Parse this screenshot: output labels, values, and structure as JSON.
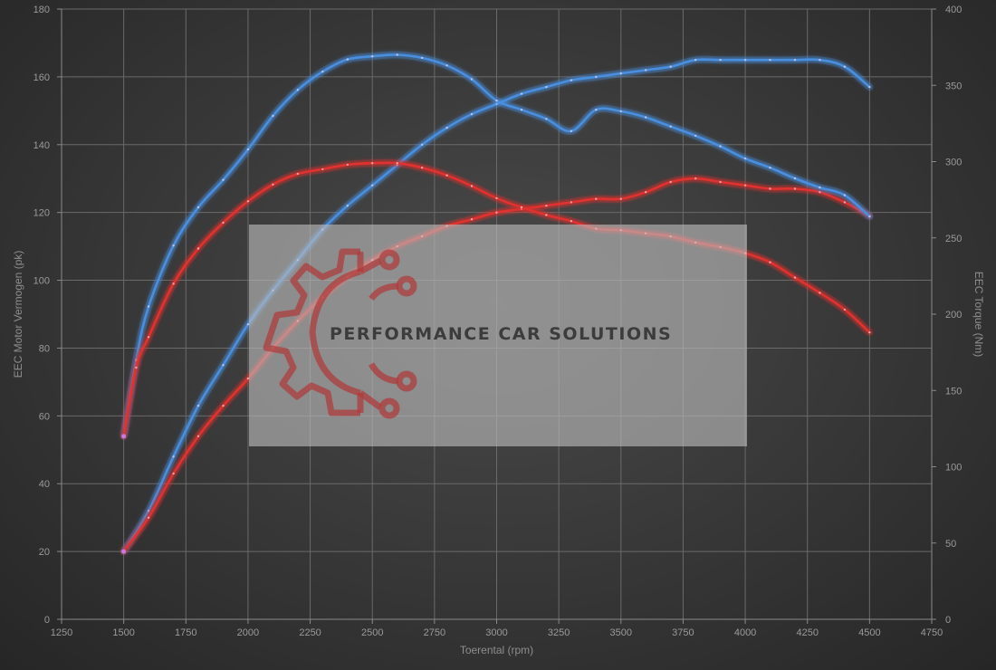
{
  "chart_data": {
    "type": "line",
    "xlabel": "Toerental (rpm)",
    "ylabel": "EEC Motor Vermogen (pk)",
    "y2label": "EEC Torque (Nm)",
    "xlim": [
      1250,
      4750
    ],
    "ylim": [
      0,
      180
    ],
    "y2lim": [
      0,
      400
    ],
    "xticks": [
      "1250",
      "1500",
      "1750",
      "2000",
      "2250",
      "2500",
      "2750",
      "3000",
      "3250",
      "3500",
      "3750",
      "4000",
      "4250",
      "4500",
      "4750"
    ],
    "yticks": [
      "0",
      "20",
      "40",
      "60",
      "80",
      "100",
      "120",
      "140",
      "160",
      "180"
    ],
    "y2ticks": [
      "0",
      "50",
      "100",
      "150",
      "200",
      "250",
      "300",
      "350",
      "400"
    ],
    "grid": true,
    "legend": "none",
    "series": [
      {
        "axis": "left",
        "color": "#4a8fe0",
        "x": [
          1500,
          1600,
          1700,
          1800,
          1900,
          2000,
          2100,
          2200,
          2300,
          2400,
          2500,
          2600,
          2700,
          2800,
          2900,
          3000,
          3100,
          3200,
          3300,
          3400,
          3500,
          3600,
          3700,
          3800,
          3900,
          4000,
          4100,
          4200,
          4300,
          4400,
          4500
        ],
        "y": [
          20,
          32,
          48,
          63,
          75,
          87,
          97,
          106,
          115,
          122,
          128,
          134,
          140,
          145,
          149,
          152,
          155,
          157,
          159,
          160,
          161,
          162,
          163,
          165,
          165,
          165,
          165,
          165,
          165,
          163,
          157
        ]
      },
      {
        "axis": "left",
        "color": "#e0302e",
        "x": [
          1500,
          1600,
          1700,
          1800,
          1900,
          2000,
          2100,
          2200,
          2300,
          2400,
          2500,
          2600,
          2700,
          2800,
          2900,
          3000,
          3100,
          3200,
          3300,
          3400,
          3500,
          3600,
          3700,
          3800,
          3900,
          4000,
          4100,
          4200,
          4300,
          4400,
          4500
        ],
        "y": [
          20,
          30,
          43,
          54,
          63,
          71,
          80,
          88,
          95,
          101,
          106,
          110,
          113,
          116,
          118,
          120,
          121,
          122,
          123,
          124,
          124,
          126,
          129,
          130,
          129,
          128,
          127,
          127,
          126,
          123,
          119
        ]
      },
      {
        "axis": "right",
        "color": "#4a8fe0",
        "x": [
          1500,
          1550,
          1600,
          1700,
          1800,
          1900,
          2000,
          2100,
          2200,
          2300,
          2400,
          2500,
          2600,
          2700,
          2800,
          2900,
          3000,
          3100,
          3200,
          3300,
          3400,
          3500,
          3600,
          3700,
          3800,
          3900,
          4000,
          4100,
          4200,
          4300,
          4400,
          4500
        ],
        "y": [
          120,
          170,
          205,
          245,
          270,
          288,
          308,
          330,
          347,
          359,
          367,
          369,
          370,
          368,
          363,
          354,
          340,
          334,
          328,
          320,
          334,
          333,
          329,
          323,
          317,
          310,
          302,
          296,
          289,
          283,
          278,
          264
        ]
      },
      {
        "axis": "right",
        "color": "#e0302e",
        "x": [
          1500,
          1550,
          1600,
          1700,
          1800,
          1900,
          2000,
          2100,
          2200,
          2300,
          2400,
          2500,
          2600,
          2700,
          2800,
          2900,
          3000,
          3100,
          3200,
          3300,
          3400,
          3500,
          3600,
          3700,
          3800,
          3900,
          4000,
          4100,
          4200,
          4300,
          4400,
          4500
        ],
        "y": [
          120,
          165,
          185,
          220,
          243,
          260,
          274,
          285,
          292,
          295,
          298,
          299,
          299,
          296,
          291,
          284,
          276,
          270,
          265,
          261,
          256,
          255,
          253,
          251,
          247,
          244,
          240,
          234,
          224,
          214,
          203,
          188
        ]
      }
    ]
  },
  "watermark": {
    "text": "PERFORMANCE CAR SOLUTIONS",
    "logo_icon": "gear-circuit-logo-icon"
  }
}
